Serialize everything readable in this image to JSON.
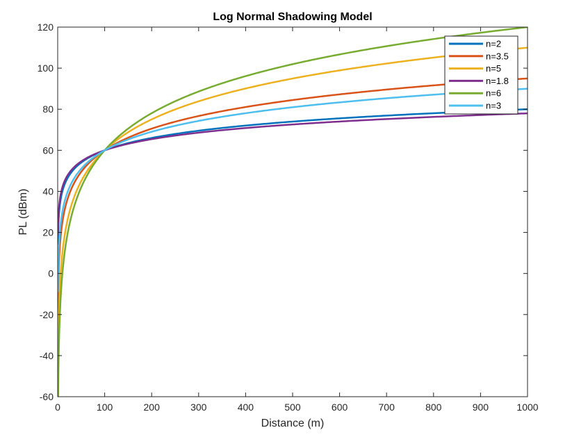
{
  "chart_data": {
    "type": "line",
    "title": "Log Normal Shadowing Model",
    "xlabel": "Distance (m)",
    "ylabel": "PL (dBm)",
    "xlim": [
      0,
      1000
    ],
    "ylim": [
      -60,
      120
    ],
    "xticks": [
      0,
      100,
      200,
      300,
      400,
      500,
      600,
      700,
      800,
      900,
      1000
    ],
    "yticks": [
      -60,
      -40,
      -20,
      0,
      20,
      40,
      60,
      80,
      100,
      120
    ],
    "grid": false,
    "legend_position": "top-right",
    "reference_distance": 100,
    "reference_pl": 60,
    "series": [
      {
        "name": "n=2",
        "n": 2,
        "color": "#0072BD",
        "values_at_ticks": {
          "x": [
            1,
            10,
            100,
            1000
          ],
          "y": [
            20,
            40,
            60,
            80
          ]
        }
      },
      {
        "name": "n=3.5",
        "n": 3.5,
        "color": "#D95319",
        "values_at_ticks": {
          "x": [
            1,
            10,
            100,
            1000
          ],
          "y": [
            -10,
            25,
            60,
            95
          ]
        }
      },
      {
        "name": "n=5",
        "n": 5,
        "color": "#EDB120",
        "values_at_ticks": {
          "x": [
            1,
            10,
            100,
            1000
          ],
          "y": [
            -40,
            10,
            60,
            110
          ]
        }
      },
      {
        "name": "n=1.8",
        "n": 1.8,
        "color": "#7E2F8E",
        "values_at_ticks": {
          "x": [
            1,
            10,
            100,
            1000
          ],
          "y": [
            24,
            42,
            60,
            78
          ]
        }
      },
      {
        "name": "n=6",
        "n": 6,
        "color": "#77AC30",
        "values_at_ticks": {
          "x": [
            1,
            10,
            100,
            1000
          ],
          "y": [
            -60,
            0,
            60,
            120
          ]
        }
      },
      {
        "name": "n=3",
        "n": 3,
        "color": "#4DBEEE",
        "values_at_ticks": {
          "x": [
            1,
            10,
            100,
            1000
          ],
          "y": [
            0,
            30,
            60,
            90
          ]
        }
      }
    ]
  }
}
